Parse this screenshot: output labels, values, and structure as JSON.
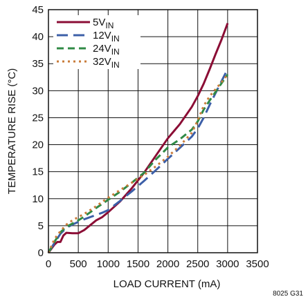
{
  "chart_data": {
    "type": "line",
    "title": "",
    "xlabel": "LOAD CURRENT (mA)",
    "ylabel": "TEMPERATURE RISE (°C)",
    "xlim": [
      0,
      3500
    ],
    "ylim": [
      0,
      45
    ],
    "x_ticks": [
      "0",
      "500",
      "1000",
      "1500",
      "2000",
      "2500",
      "3000",
      "3500"
    ],
    "y_ticks": [
      "0",
      "5",
      "10",
      "15",
      "20",
      "25",
      "30",
      "35",
      "40",
      "45"
    ],
    "grid": true,
    "legend_position": "top-left",
    "figure_code": "8025 G31",
    "series": [
      {
        "name_main": "5V",
        "name_sub": "IN",
        "color": "#8b0d35",
        "dash": "solid",
        "points": [
          [
            0,
            0
          ],
          [
            100,
            1.5
          ],
          [
            150,
            2
          ],
          [
            200,
            2
          ],
          [
            250,
            3.2
          ],
          [
            300,
            3.7
          ],
          [
            400,
            3.6
          ],
          [
            500,
            3.6
          ],
          [
            600,
            4.2
          ],
          [
            700,
            5.1
          ],
          [
            800,
            6
          ],
          [
            900,
            6.6
          ],
          [
            1000,
            7.5
          ],
          [
            1200,
            9.5
          ],
          [
            1400,
            12
          ],
          [
            1600,
            14.8
          ],
          [
            1800,
            18
          ],
          [
            2000,
            21.2
          ],
          [
            2200,
            23.8
          ],
          [
            2400,
            27
          ],
          [
            2500,
            29
          ],
          [
            2600,
            31.3
          ],
          [
            2700,
            34
          ],
          [
            2800,
            36.8
          ],
          [
            2900,
            39.5
          ],
          [
            3000,
            42.5
          ]
        ]
      },
      {
        "name_main": "12V",
        "name_sub": "IN",
        "color": "#3c5fa8",
        "dash": "long",
        "points": [
          [
            0,
            0
          ],
          [
            100,
            1.8
          ],
          [
            200,
            3.5
          ],
          [
            300,
            4.6
          ],
          [
            400,
            5.2
          ],
          [
            500,
            5.7
          ],
          [
            600,
            6.2
          ],
          [
            700,
            6.6
          ],
          [
            800,
            7
          ],
          [
            900,
            7.4
          ],
          [
            1000,
            7.9
          ],
          [
            1200,
            9.6
          ],
          [
            1400,
            11.4
          ],
          [
            1600,
            13.3
          ],
          [
            1800,
            15.3
          ],
          [
            2000,
            17.4
          ],
          [
            2200,
            19.4
          ],
          [
            2400,
            21.5
          ],
          [
            2500,
            23
          ],
          [
            2600,
            25
          ],
          [
            2700,
            27.4
          ],
          [
            2800,
            29.6
          ],
          [
            2900,
            31.8
          ],
          [
            3000,
            34
          ]
        ]
      },
      {
        "name_main": "24V",
        "name_sub": "IN",
        "color": "#2f8a45",
        "dash": "medium",
        "points": [
          [
            0,
            0
          ],
          [
            100,
            2
          ],
          [
            200,
            3.8
          ],
          [
            300,
            4.8
          ],
          [
            400,
            5.4
          ],
          [
            500,
            6
          ],
          [
            600,
            6.7
          ],
          [
            800,
            8.3
          ],
          [
            1000,
            9.8
          ],
          [
            1200,
            11.3
          ],
          [
            1400,
            13
          ],
          [
            1600,
            14.8
          ],
          [
            1800,
            17.3
          ],
          [
            2000,
            19.5
          ],
          [
            2200,
            21
          ],
          [
            2400,
            22.8
          ],
          [
            2500,
            24.3
          ],
          [
            2600,
            26.5
          ],
          [
            2700,
            28.2
          ],
          [
            2800,
            29.8
          ],
          [
            2900,
            31.4
          ],
          [
            3000,
            33
          ]
        ]
      },
      {
        "name_main": "32V",
        "name_sub": "IN",
        "color": "#c97b3a",
        "dash": "short",
        "points": [
          [
            0,
            0
          ],
          [
            100,
            2.5
          ],
          [
            200,
            4
          ],
          [
            300,
            5.2
          ],
          [
            400,
            6
          ],
          [
            600,
            7.2
          ],
          [
            800,
            8.6
          ],
          [
            1000,
            10.2
          ],
          [
            1200,
            11.6
          ],
          [
            1400,
            13
          ],
          [
            1600,
            14.4
          ],
          [
            1800,
            16
          ],
          [
            2000,
            17.8
          ],
          [
            2200,
            19.8
          ],
          [
            2400,
            22.2
          ],
          [
            2500,
            24.5
          ],
          [
            2600,
            27.2
          ],
          [
            2700,
            29
          ],
          [
            2800,
            30.3
          ],
          [
            2900,
            31.6
          ],
          [
            3000,
            33
          ]
        ]
      }
    ]
  }
}
